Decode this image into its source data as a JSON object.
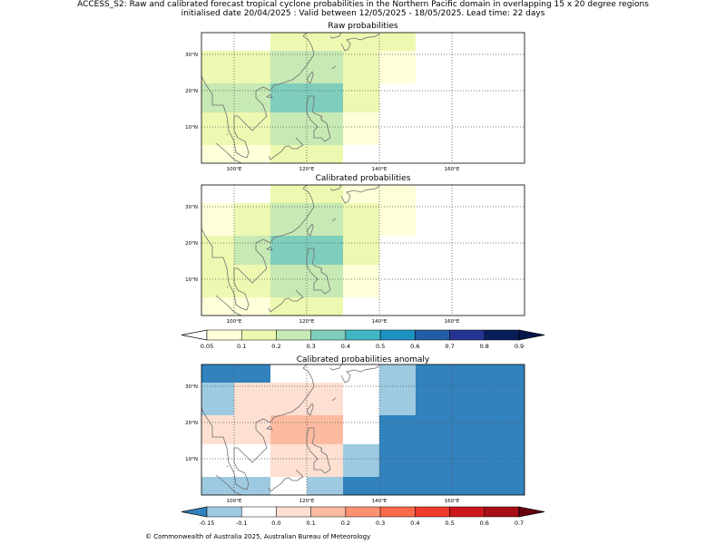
{
  "header": {
    "title_line1": "ACCESS_S2: Raw and calibrated forecast tropical cyclone probabilities in the Northern Pacific domain in overlapping 15 x 20 degree regions",
    "title_line2": "initialised date 20/04/2025 :  Valid between 12/05/2025 - 18/05/2025. Lead time: 22 days"
  },
  "footer": {
    "copyright": "© Commonwealth of Australia 2025, Australian Bureau of Meteorology"
  },
  "chart_data": [
    {
      "type": "heatmap",
      "title": "Raw probabilities",
      "xlim": [
        91,
        180
      ],
      "ylim": [
        0,
        36
      ],
      "xticks": [
        100,
        120,
        140,
        160
      ],
      "xtick_labels": [
        "100°E",
        "120°E",
        "140°E",
        "160°E"
      ],
      "yticks": [
        10,
        20,
        30
      ],
      "ytick_labels": [
        "10°N",
        "20°N",
        "30°N"
      ],
      "grid": true,
      "cells": [
        {
          "lon": [
            91,
            110
          ],
          "lat": [
            0,
            5
          ],
          "value": 0.07
        },
        {
          "lon": [
            110,
            130
          ],
          "lat": [
            0,
            5
          ],
          "value": 0.1
        },
        {
          "lon": [
            91,
            110
          ],
          "lat": [
            5,
            14
          ],
          "value": 0.1
        },
        {
          "lon": [
            110,
            130
          ],
          "lat": [
            5,
            14
          ],
          "value": 0.2
        },
        {
          "lon": [
            130,
            140
          ],
          "lat": [
            5,
            14
          ],
          "value": 0.07
        },
        {
          "lon": [
            91,
            110
          ],
          "lat": [
            14,
            22
          ],
          "value": 0.2
        },
        {
          "lon": [
            110,
            130
          ],
          "lat": [
            14,
            22
          ],
          "value": 0.3
        },
        {
          "lon": [
            130,
            140
          ],
          "lat": [
            14,
            22
          ],
          "value": 0.1
        },
        {
          "lon": [
            91,
            110
          ],
          "lat": [
            22,
            31
          ],
          "value": 0.1
        },
        {
          "lon": [
            110,
            130
          ],
          "lat": [
            22,
            31
          ],
          "value": 0.2
        },
        {
          "lon": [
            130,
            140
          ],
          "lat": [
            22,
            31
          ],
          "value": 0.1
        },
        {
          "lon": [
            140,
            150
          ],
          "lat": [
            22,
            31
          ],
          "value": 0.07
        },
        {
          "lon": [
            110,
            130
          ],
          "lat": [
            31,
            36
          ],
          "value": 0.1
        },
        {
          "lon": [
            130,
            150
          ],
          "lat": [
            31,
            36
          ],
          "value": 0.1
        }
      ]
    },
    {
      "type": "heatmap",
      "title": "Calibrated probabilities",
      "xlim": [
        91,
        180
      ],
      "ylim": [
        0,
        36
      ],
      "xticks": [
        100,
        120,
        140,
        160
      ],
      "xtick_labels": [
        "100°E",
        "120°E",
        "140°E",
        "160°E"
      ],
      "yticks": [
        10,
        20,
        30
      ],
      "ytick_labels": [
        "10°N",
        "20°N",
        "30°N"
      ],
      "grid": true,
      "cells": [
        {
          "lon": [
            91,
            110
          ],
          "lat": [
            0,
            5
          ],
          "value": 0.07
        },
        {
          "lon": [
            110,
            130
          ],
          "lat": [
            0,
            5
          ],
          "value": 0.1
        },
        {
          "lon": [
            91,
            110
          ],
          "lat": [
            5,
            14
          ],
          "value": 0.1
        },
        {
          "lon": [
            110,
            130
          ],
          "lat": [
            5,
            14
          ],
          "value": 0.2
        },
        {
          "lon": [
            130,
            140
          ],
          "lat": [
            5,
            14
          ],
          "value": 0.07
        },
        {
          "lon": [
            91,
            100
          ],
          "lat": [
            14,
            22
          ],
          "value": 0.1
        },
        {
          "lon": [
            100,
            110
          ],
          "lat": [
            14,
            22
          ],
          "value": 0.2
        },
        {
          "lon": [
            110,
            130
          ],
          "lat": [
            14,
            22
          ],
          "value": 0.3
        },
        {
          "lon": [
            130,
            140
          ],
          "lat": [
            14,
            22
          ],
          "value": 0.1
        },
        {
          "lon": [
            91,
            100
          ],
          "lat": [
            22,
            31
          ],
          "value": 0.07
        },
        {
          "lon": [
            100,
            110
          ],
          "lat": [
            22,
            31
          ],
          "value": 0.1
        },
        {
          "lon": [
            110,
            130
          ],
          "lat": [
            22,
            31
          ],
          "value": 0.2
        },
        {
          "lon": [
            130,
            140
          ],
          "lat": [
            22,
            31
          ],
          "value": 0.1
        },
        {
          "lon": [
            140,
            150
          ],
          "lat": [
            22,
            31
          ],
          "value": 0.07
        },
        {
          "lon": [
            110,
            130
          ],
          "lat": [
            31,
            36
          ],
          "value": 0.1
        },
        {
          "lon": [
            130,
            150
          ],
          "lat": [
            31,
            36
          ],
          "value": 0.07
        }
      ]
    },
    {
      "type": "heatmap",
      "title": "Calibrated probabilities anomaly",
      "xlim": [
        91,
        180
      ],
      "ylim": [
        0,
        36
      ],
      "xticks": [
        100,
        120,
        140,
        160
      ],
      "xtick_labels": [
        "100°E",
        "120°E",
        "140°E",
        "160°E"
      ],
      "yticks": [
        10,
        20,
        30
      ],
      "ytick_labels": [
        "10°N",
        "20°N",
        "30°N"
      ],
      "grid": true,
      "cells": [
        {
          "lon": [
            91,
            110
          ],
          "lat": [
            31,
            36
          ],
          "value": -0.2
        },
        {
          "lon": [
            91,
            100
          ],
          "lat": [
            22,
            31
          ],
          "value": -0.12
        },
        {
          "lon": [
            100,
            110
          ],
          "lat": [
            22,
            31
          ],
          "value": 0.0
        },
        {
          "lon": [
            110,
            130
          ],
          "lat": [
            22,
            31
          ],
          "value": 0.05
        },
        {
          "lon": [
            140,
            150
          ],
          "lat": [
            22,
            36
          ],
          "value": -0.12
        },
        {
          "lon": [
            150,
            180
          ],
          "lat": [
            22,
            36
          ],
          "value": -0.2
        },
        {
          "lon": [
            91,
            100
          ],
          "lat": [
            14,
            22
          ],
          "value": 0.0
        },
        {
          "lon": [
            100,
            110
          ],
          "lat": [
            14,
            22
          ],
          "value": 0.05
        },
        {
          "lon": [
            110,
            130
          ],
          "lat": [
            14,
            22
          ],
          "value": 0.15
        },
        {
          "lon": [
            140,
            180
          ],
          "lat": [
            14,
            22
          ],
          "value": -0.2
        },
        {
          "lon": [
            110,
            130
          ],
          "lat": [
            5,
            14
          ],
          "value": 0.05
        },
        {
          "lon": [
            130,
            140
          ],
          "lat": [
            5,
            14
          ],
          "value": -0.12
        },
        {
          "lon": [
            140,
            180
          ],
          "lat": [
            5,
            14
          ],
          "value": -0.2
        },
        {
          "lon": [
            91,
            110
          ],
          "lat": [
            0,
            5
          ],
          "value": -0.12
        },
        {
          "lon": [
            120,
            130
          ],
          "lat": [
            0,
            5
          ],
          "value": -0.12
        },
        {
          "lon": [
            130,
            140
          ],
          "lat": [
            0,
            5
          ],
          "value": -0.2
        },
        {
          "lon": [
            140,
            180
          ],
          "lat": [
            0,
            5
          ],
          "value": -0.2
        }
      ]
    }
  ],
  "colorbars": [
    {
      "labels": [
        "0.05",
        "0.1",
        "0.2",
        "0.3",
        "0.4",
        "0.5",
        "0.6",
        "0.7",
        "0.8",
        "0.9"
      ],
      "colors": [
        "#ffffd9",
        "#edf8b1",
        "#c7e9b4",
        "#7fcdbb",
        "#41b6c4",
        "#1d91c0",
        "#225ea8",
        "#253494",
        "#081d58"
      ],
      "under": "#ffffff",
      "over": "#06154a"
    },
    {
      "labels": [
        "-0.15",
        "-0.1",
        "0.0",
        "0.1",
        "0.2",
        "0.3",
        "0.4",
        "0.5",
        "0.6",
        "0.7"
      ],
      "colors": [
        "#9ecae1",
        "#ffffff",
        "#fee0d2",
        "#fcbba1",
        "#fc9272",
        "#fb6a4a",
        "#ef3b2c",
        "#cb181d",
        "#a50f15"
      ],
      "under": "#3182bd",
      "over": "#67000d"
    }
  ]
}
